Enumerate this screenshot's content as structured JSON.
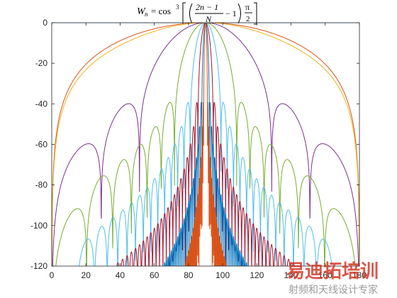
{
  "chart_data": {
    "type": "line",
    "title_parts": {
      "lhs": "W",
      "lhs_sub": "n",
      "eq": "= cos",
      "exp": "3",
      "num": "2n − 1",
      "den": "N",
      "minus_one": "− 1",
      "pi": "π",
      "two": "2"
    },
    "xlabel": "",
    "ylabel": "",
    "xlim": [
      0,
      180
    ],
    "ylim": [
      -120,
      0
    ],
    "xticks": [
      "0",
      "20",
      "40",
      "60",
      "80",
      "100",
      "120",
      "140",
      "160",
      "180"
    ],
    "yticks": [
      "0",
      "-20",
      "-40",
      "-60",
      "-80",
      "-100",
      "-120"
    ],
    "grid": false,
    "legend": "none",
    "x_unit": "degrees",
    "y_unit": "dB",
    "series": [
      {
        "color": "#0072BD",
        "N": 1,
        "peak_deg": 90,
        "sidelobe_env": [
          [
            90,
            0
          ]
        ]
      },
      {
        "color": "#D95319",
        "N": 2,
        "peak_deg": 90,
        "sidelobe_env": [
          [
            90,
            0
          ]
        ]
      },
      {
        "color": "#EDB120",
        "N": 4,
        "peak_deg": 90,
        "sidelobe_env": [
          [
            21,
            -60
          ],
          [
            46,
            -40
          ],
          [
            134,
            -40
          ],
          [
            159,
            -60
          ]
        ]
      },
      {
        "color": "#7E2F8E",
        "N": 8,
        "peak_deg": 90,
        "sidelobe_env": [
          [
            5,
            -90
          ],
          [
            16,
            -75
          ],
          [
            37,
            -60
          ],
          [
            62,
            -40
          ],
          [
            118,
            -40
          ],
          [
            143,
            -60
          ],
          [
            164,
            -75
          ],
          [
            175,
            -90
          ]
        ]
      },
      {
        "color": "#77AC30",
        "N": 16,
        "peak_deg": 90,
        "sidelobe_env": [
          [
            15,
            -115
          ],
          [
            40,
            -95
          ],
          [
            62,
            -60
          ],
          [
            72,
            -40
          ],
          [
            108,
            -40
          ],
          [
            118,
            -60
          ],
          [
            140,
            -95
          ],
          [
            165,
            -115
          ]
        ]
      },
      {
        "color": "#4DBEEE",
        "N": 32,
        "peak_deg": 90,
        "sidelobe_env": [
          [
            45,
            -120
          ],
          [
            60,
            -100
          ],
          [
            75,
            -70
          ],
          [
            80,
            -40
          ],
          [
            100,
            -40
          ],
          [
            105,
            -70
          ],
          [
            120,
            -100
          ],
          [
            135,
            -120
          ]
        ]
      },
      {
        "color": "#A2142F",
        "N": 64,
        "peak_deg": 90,
        "sidelobe_env": [
          [
            65,
            -120
          ],
          [
            75,
            -100
          ],
          [
            83,
            -60
          ],
          [
            97,
            -60
          ],
          [
            105,
            -100
          ],
          [
            115,
            -120
          ]
        ]
      },
      {
        "color": "#0072BD",
        "N": 128,
        "peak_deg": 90,
        "sidelobe_env": [
          [
            78,
            -120
          ],
          [
            85,
            -80
          ],
          [
            95,
            -80
          ],
          [
            102,
            -120
          ]
        ]
      },
      {
        "color": "#D95319",
        "N": 256,
        "peak_deg": 90,
        "sidelobe_env": [
          [
            84,
            -120
          ],
          [
            88,
            -60
          ],
          [
            92,
            -60
          ],
          [
            96,
            -120
          ]
        ]
      }
    ]
  },
  "watermark": {
    "big": "易迪拓培训",
    "small": "射频和天线设计专家"
  }
}
